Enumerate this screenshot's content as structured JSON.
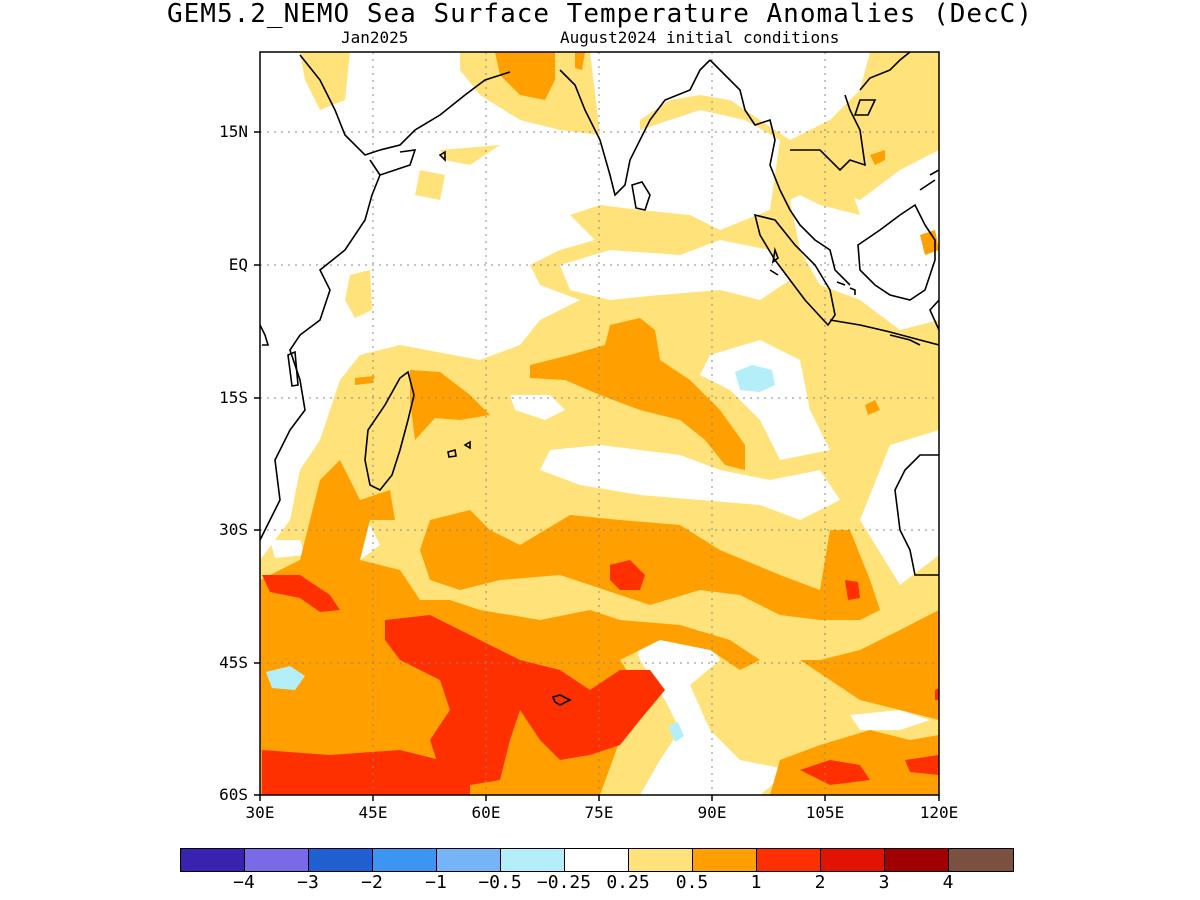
{
  "title": "GEM5.2_NEMO Sea Surface Temperature Anomalies (DecC)",
  "subtitle_left": "Jan2025",
  "subtitle_right": "August2024 initial conditions",
  "axes": {
    "x_ticks": [
      "30E",
      "45E",
      "60E",
      "75E",
      "90E",
      "105E",
      "120E"
    ],
    "y_ticks": [
      "15N",
      "EQ",
      "15S",
      "30S",
      "45S",
      "60S"
    ]
  },
  "colorbar": {
    "colors": [
      "#3a22b0",
      "#7a6ae8",
      "#1f5fd0",
      "#3c95f0",
      "#76b4f8",
      "#b4eef8",
      "#ffffff",
      "#ffe27a",
      "#ffa000",
      "#ff3000",
      "#e01400",
      "#a00000",
      "#7a5040"
    ],
    "labels": [
      "−4",
      "−3",
      "−2",
      "−1",
      "−0.5",
      "−0.25",
      "0.25",
      "0.5",
      "1",
      "2",
      "3",
      "4"
    ]
  },
  "map": {
    "region": "Indian Ocean",
    "lon_range": [
      30,
      120
    ],
    "lat_range": [
      -60,
      24
    ],
    "grid": true
  }
}
